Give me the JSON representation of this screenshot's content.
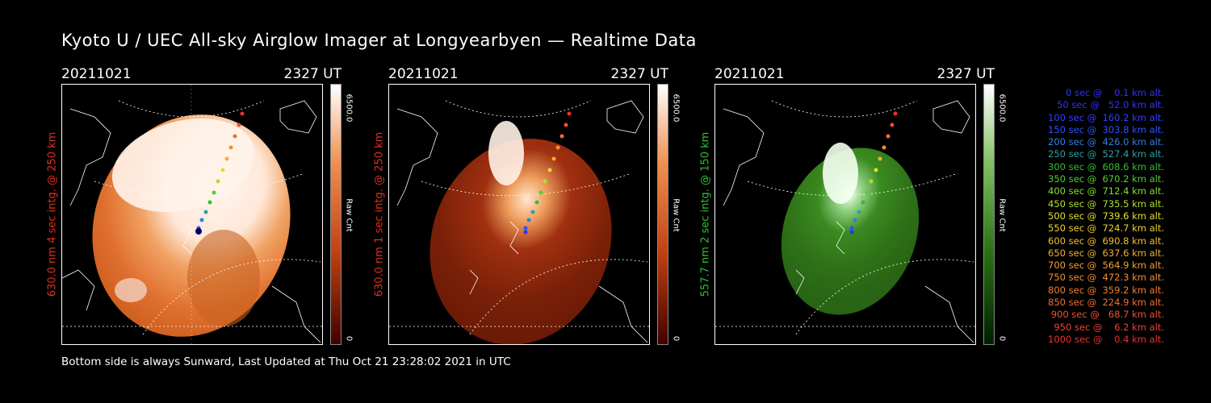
{
  "title": "Kyoto U / UEC All-sky Airglow Imager at Longyearbyen — Realtime Data",
  "panels": [
    {
      "date": "20211021",
      "time": "2327 UT",
      "label": "630.0 nm 4 sec intg. @ 250 km",
      "label_color": "#e03020",
      "colorbar_max": "6500.0",
      "colorbar_unit": "Raw Cnt",
      "colorbar_min": "0",
      "colorscale": "red-white"
    },
    {
      "date": "20211021",
      "time": "2327 UT",
      "label": "630.0 nm 1 sec intg. @ 250 km",
      "label_color": "#e03020",
      "colorbar_max": "6500.0",
      "colorbar_unit": "Raw Cnt",
      "colorbar_min": "0",
      "colorscale": "red-white"
    },
    {
      "date": "20211021",
      "time": "2327 UT",
      "label": "557.7 nm 2 sec intg. @ 150 km",
      "label_color": "#30c030",
      "colorbar_max": "6500.0",
      "colorbar_unit": "Raw Cnt",
      "colorbar_min": "0",
      "colorscale": "green-white"
    }
  ],
  "legend": [
    {
      "text": "0 sec @    0.1 km alt.",
      "color": "#3030ff"
    },
    {
      "text": "50 sec @   52.0 km alt.",
      "color": "#3030ff"
    },
    {
      "text": "100 sec @  160.2 km alt.",
      "color": "#3040ff"
    },
    {
      "text": "150 sec @  303.8 km alt.",
      "color": "#3050ff"
    },
    {
      "text": "200 sec @  426.0 km alt.",
      "color": "#3080e0"
    },
    {
      "text": "250 sec @  527.4 km alt.",
      "color": "#30a0a0"
    },
    {
      "text": "300 sec @  608.6 km alt.",
      "color": "#30c030"
    },
    {
      "text": "350 sec @  670.2 km alt.",
      "color": "#50d030"
    },
    {
      "text": "400 sec @  712.4 km alt.",
      "color": "#80e030"
    },
    {
      "text": "450 sec @  735.5 km alt.",
      "color": "#b0e030"
    },
    {
      "text": "500 sec @  739.6 km alt.",
      "color": "#e0e030"
    },
    {
      "text": "550 sec @  724.7 km alt.",
      "color": "#f0d030"
    },
    {
      "text": "600 sec @  690.8 km alt.",
      "color": "#f0c030"
    },
    {
      "text": "650 sec @  637.6 km alt.",
      "color": "#f0b030"
    },
    {
      "text": "700 sec @  564.9 km alt.",
      "color": "#f0a030"
    },
    {
      "text": "750 sec @  472.3 km alt.",
      "color": "#f09030"
    },
    {
      "text": "800 sec @  359.2 km alt.",
      "color": "#f08030"
    },
    {
      "text": "850 sec @  224.9 km alt.",
      "color": "#f07030"
    },
    {
      "text": "900 sec @   68.7 km alt.",
      "color": "#f05030"
    },
    {
      "text": "950 sec @    6.2 km alt.",
      "color": "#f04030"
    },
    {
      "text": "1000 sec @    0.4 km alt.",
      "color": "#f03030"
    }
  ],
  "footer": "Bottom side is always Sunward, Last Updated at Thu Oct 21 23:28:02 2021 in UTC"
}
